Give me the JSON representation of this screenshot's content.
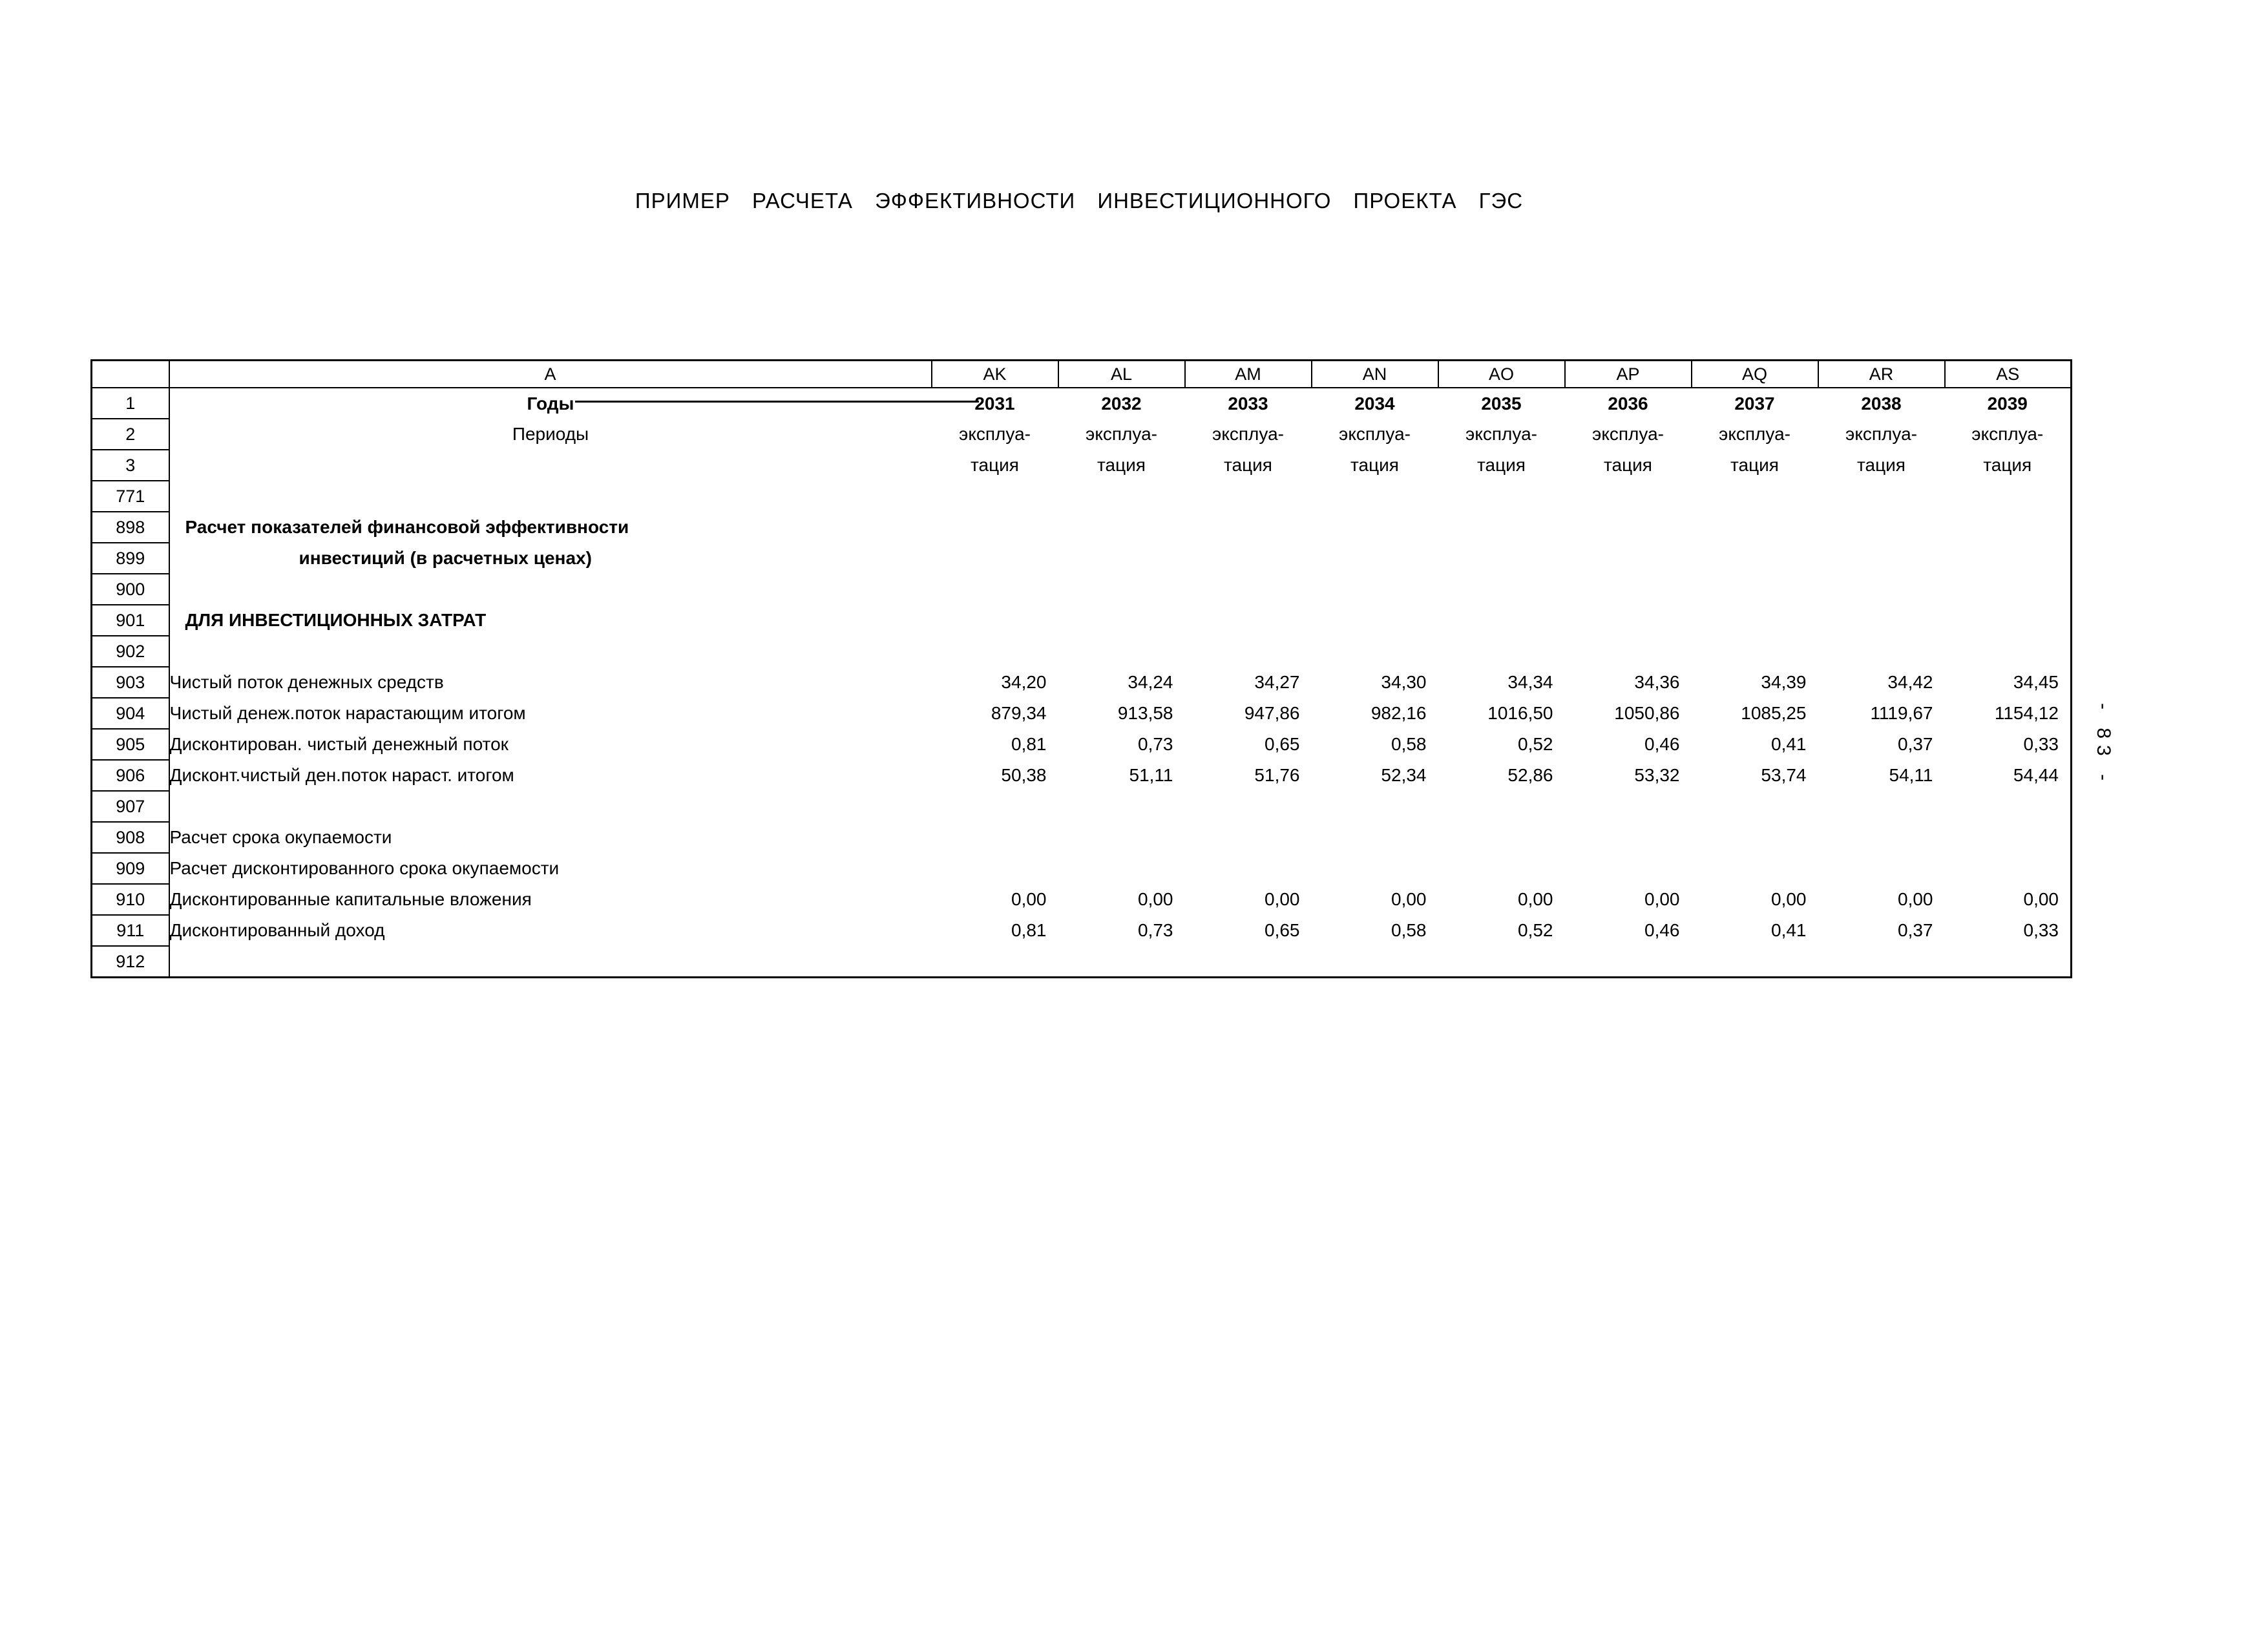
{
  "page": {
    "title": "ПРИМЕР РАСЧЕТА ЭФФЕКТИВНОСТИ ИНВЕСТИЦИОННОГО ПРОЕКТА ГЭС",
    "side_page_number": "- 83 -"
  },
  "colors": {
    "background": "#ffffff",
    "text": "#000000",
    "grid": "#000000"
  },
  "table": {
    "column_letters": [
      "A",
      "AK",
      "AL",
      "AM",
      "AN",
      "AO",
      "AP",
      "AQ",
      "AR",
      "AS"
    ],
    "rows": [
      {
        "num": "1",
        "label": "Годы",
        "bold": true,
        "align": "center",
        "values": [
          "2031",
          "2032",
          "2033",
          "2034",
          "2035",
          "2036",
          "2037",
          "2038",
          "2039"
        ],
        "values_bold": true,
        "values_align": "center"
      },
      {
        "num": "2",
        "label": "Периоды",
        "align": "center",
        "values": [
          "эксплуа-",
          "эксплуа-",
          "эксплуа-",
          "эксплуа-",
          "эксплуа-",
          "эксплуа-",
          "эксплуа-",
          "эксплуа-",
          "эксплуа-"
        ],
        "values_align": "center"
      },
      {
        "num": "3",
        "label": "",
        "values": [
          "тация",
          "тация",
          "тация",
          "тация",
          "тация",
          "тация",
          "тация",
          "тация",
          "тация"
        ],
        "values_align": "center"
      },
      {
        "num": "771",
        "label": ""
      },
      {
        "num": "898",
        "label": "Расчет показателей финансовой эффективности",
        "bold": true,
        "indent": 24
      },
      {
        "num": "899",
        "label": "инвестиций (в расчетных ценах)",
        "bold": true,
        "indent": 200
      },
      {
        "num": "900",
        "label": ""
      },
      {
        "num": "901",
        "label": "ДЛЯ ИНВЕСТИЦИОННЫХ ЗАТРАТ",
        "bold": true,
        "indent": 24
      },
      {
        "num": "902",
        "label": ""
      },
      {
        "num": "903",
        "label": "Чистый поток денежных средств",
        "values": [
          "34,20",
          "34,24",
          "34,27",
          "34,30",
          "34,34",
          "34,36",
          "34,39",
          "34,42",
          "34,45"
        ]
      },
      {
        "num": "904",
        "label": "Чистый денеж.поток нарастающим итогом",
        "values": [
          "879,34",
          "913,58",
          "947,86",
          "982,16",
          "1016,50",
          "1050,86",
          "1085,25",
          "1119,67",
          "1154,12"
        ]
      },
      {
        "num": "905",
        "label": "Дисконтирован. чистый денежный поток",
        "values": [
          "0,81",
          "0,73",
          "0,65",
          "0,58",
          "0,52",
          "0,46",
          "0,41",
          "0,37",
          "0,33"
        ]
      },
      {
        "num": "906",
        "label": "Дисконт.чистый ден.поток нараст. итогом",
        "values": [
          "50,38",
          "51,11",
          "51,76",
          "52,34",
          "52,86",
          "53,32",
          "53,74",
          "54,11",
          "54,44"
        ]
      },
      {
        "num": "907",
        "label": ""
      },
      {
        "num": "908",
        "label": "Расчет срока окупаемости"
      },
      {
        "num": "909",
        "label": "Расчет дисконтированного срока окупаемости"
      },
      {
        "num": "910",
        "label": "Дисконтированные капитальные вложения",
        "values": [
          "0,00",
          "0,00",
          "0,00",
          "0,00",
          "0,00",
          "0,00",
          "0,00",
          "0,00",
          "0,00"
        ]
      },
      {
        "num": "911",
        "label": "Дисконтированный доход",
        "values": [
          "0,81",
          "0,73",
          "0,65",
          "0,58",
          "0,52",
          "0,46",
          "0,41",
          "0,37",
          "0,33"
        ]
      },
      {
        "num": "912",
        "label": ""
      }
    ]
  }
}
